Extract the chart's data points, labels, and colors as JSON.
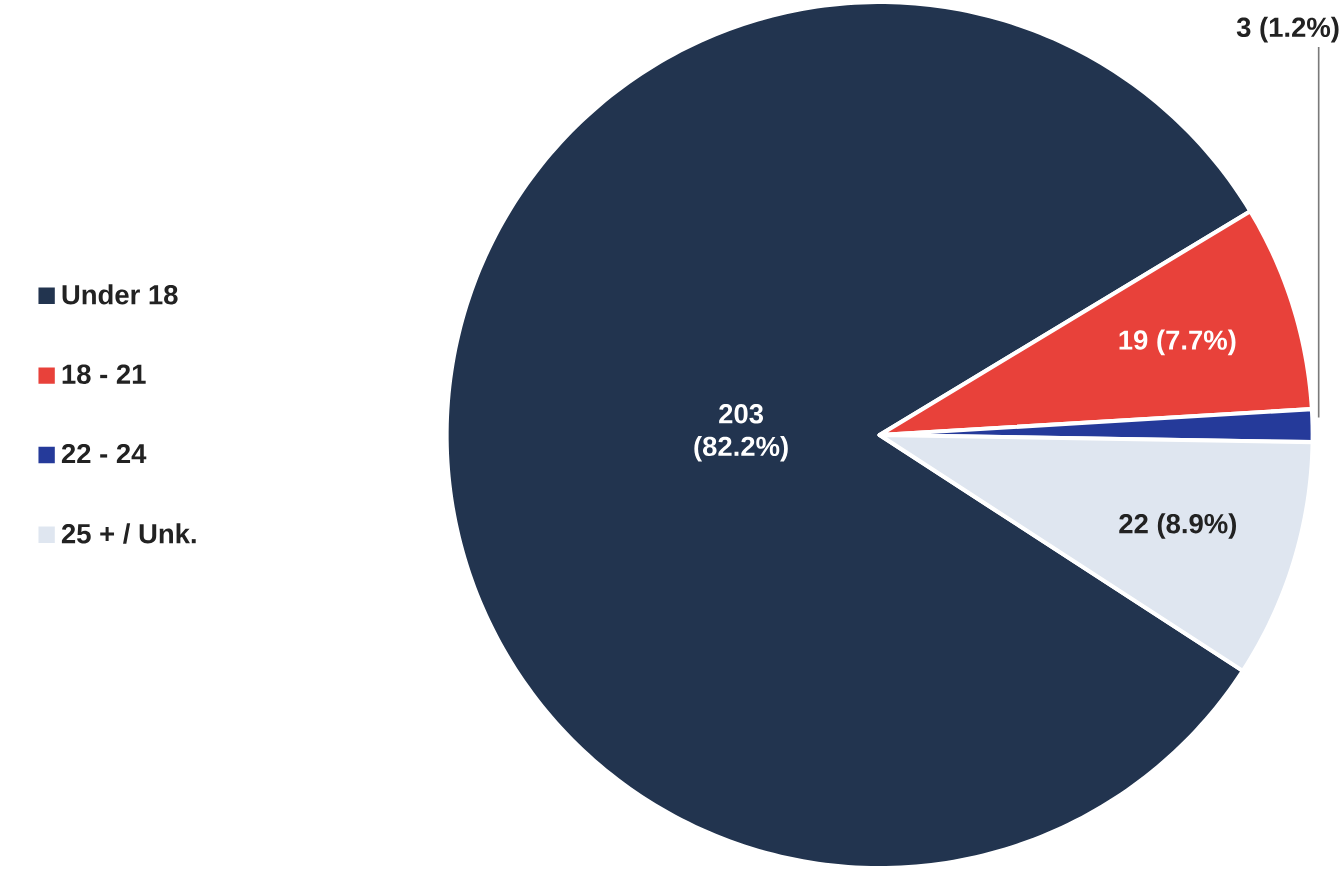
{
  "chart_data": {
    "type": "pie",
    "categories": [
      "Under 18",
      "18 - 21",
      "22 - 24",
      "25 + / Unk."
    ],
    "values": [
      203,
      19,
      3,
      22
    ],
    "colors": [
      "#22344f",
      "#e8413a",
      "#253a9a",
      "#dfe6f0"
    ],
    "value_labels": [
      "203 (82.2%)",
      "19 (7.7%)",
      "3 (1.2%)",
      "22 (8.9%)"
    ],
    "legend": "left"
  }
}
